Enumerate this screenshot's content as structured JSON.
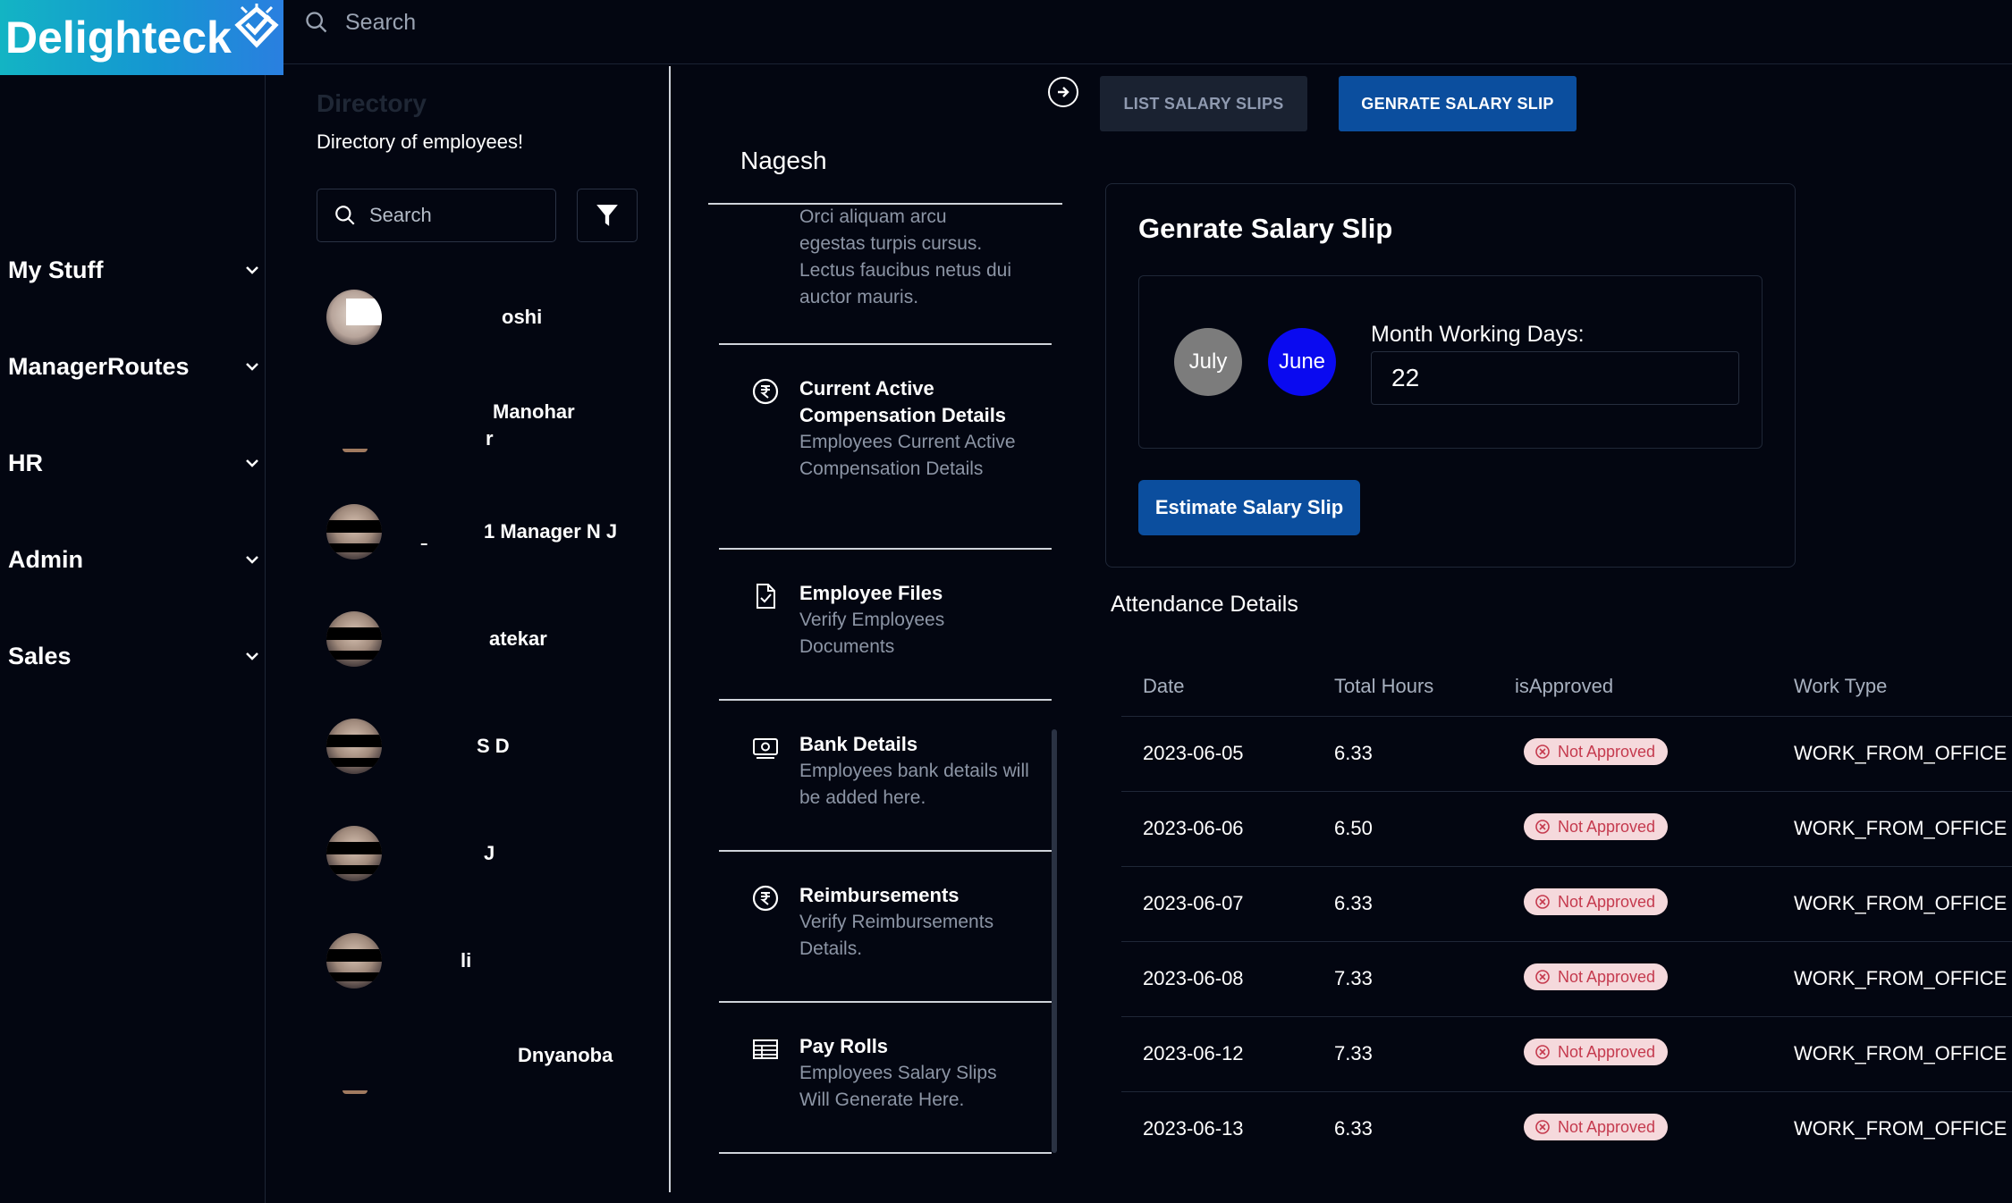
{
  "app": {
    "logo_text": "Delighteck"
  },
  "topbar": {
    "search_placeholder": "Search"
  },
  "sidebar": {
    "items": [
      {
        "label": "My Stuff"
      },
      {
        "label": "ManagerRoutes"
      },
      {
        "label": "HR"
      },
      {
        "label": "Admin"
      },
      {
        "label": "Sales"
      }
    ]
  },
  "directory": {
    "title": "Directory",
    "subtitle": "Directory of employees!",
    "search_placeholder": "Search",
    "employees": [
      {
        "name": "oshi"
      },
      {
        "name": "Manohar",
        "name2": "r"
      },
      {
        "name": "1 Manager N J",
        "mark": "ـ"
      },
      {
        "name": "atekar"
      },
      {
        "name": "S D"
      },
      {
        "name": "J"
      },
      {
        "name": "li"
      },
      {
        "name": "Dnyanoba"
      }
    ]
  },
  "detail": {
    "employee_name": "Nagesh",
    "top_desc": "Orci aliquam arcu egestas turpis cursus. Lectus faucibus netus dui auctor mauris.",
    "menu": [
      {
        "title": "Current Active Compensation Details",
        "desc": "Employees Current Active Compensation Details",
        "icon": "rupee-icon"
      },
      {
        "title": "Employee Files",
        "desc": "Verify Employees Documents",
        "icon": "file-check-icon"
      },
      {
        "title": "Bank Details",
        "desc": "Employees bank details will be added here.",
        "icon": "cash-icon"
      },
      {
        "title": "Reimbursements",
        "desc": "Verify Reimbursements Details.",
        "icon": "rupee-icon"
      },
      {
        "title": "Pay Rolls",
        "desc": "Employees Salary Slips Will Generate Here.",
        "icon": "table-icon"
      }
    ]
  },
  "actions": {
    "list_label": "LIST SALARY SLIPS",
    "generate_label": "GENRATE SALARY SLIP"
  },
  "salary": {
    "title": "Genrate Salary Slip",
    "month_prev": "July",
    "month_current": "June",
    "working_days_label": "Month Working Days:",
    "working_days_value": "22",
    "estimate_label": "Estimate Salary Slip",
    "colors": {
      "prev": "#7c7c7c",
      "current": "#0a0af0"
    }
  },
  "attendance": {
    "title": "Attendance Details",
    "headers": [
      "Date",
      "Total Hours",
      "isApproved",
      "Work Type"
    ],
    "rows": [
      {
        "date": "2023-06-05",
        "hours": "6.33",
        "status": "Not Approved",
        "type": "WORK_FROM_OFFICE"
      },
      {
        "date": "2023-06-06",
        "hours": "6.50",
        "status": "Not Approved",
        "type": "WORK_FROM_OFFICE"
      },
      {
        "date": "2023-06-07",
        "hours": "6.33",
        "status": "Not Approved",
        "type": "WORK_FROM_OFFICE"
      },
      {
        "date": "2023-06-08",
        "hours": "7.33",
        "status": "Not Approved",
        "type": "WORK_FROM_OFFICE"
      },
      {
        "date": "2023-06-12",
        "hours": "7.33",
        "status": "Not Approved",
        "type": "WORK_FROM_OFFICE"
      },
      {
        "date": "2023-06-13",
        "hours": "6.33",
        "status": "Not Approved",
        "type": "WORK_FROM_OFFICE"
      }
    ]
  }
}
